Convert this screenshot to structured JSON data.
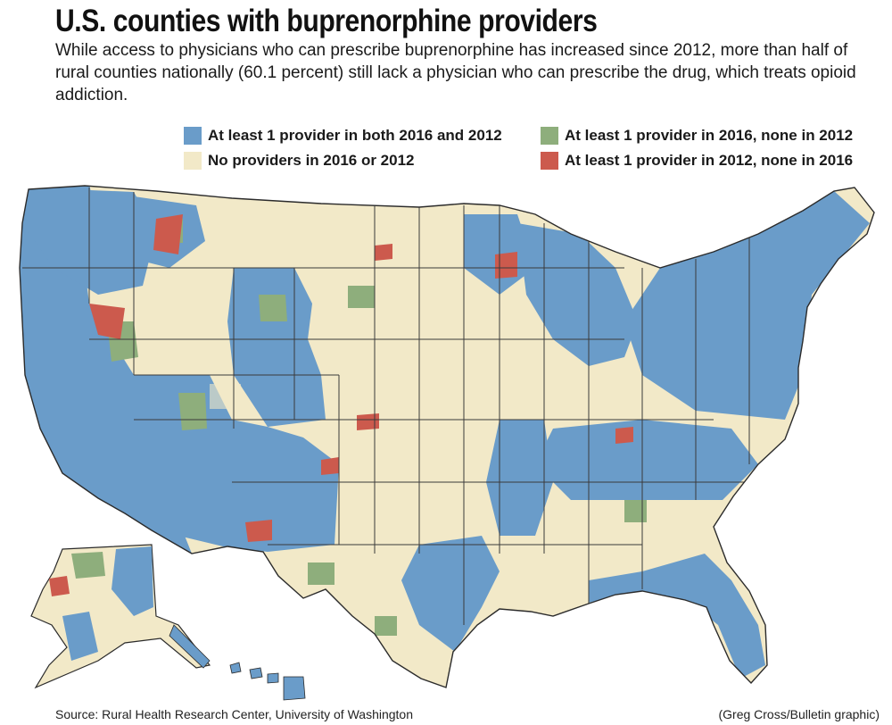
{
  "header": {
    "title": "U.S. counties with buprenorphine providers",
    "subtitle": "While access to physicians who can prescribe buprenorphine has increased since 2012, more than half of rural counties nationally (60.1 percent) still lack a physician who can prescribe the drug, which treats opioid addiction."
  },
  "legend": [
    {
      "label": "At least 1 provider in both 2016 and 2012",
      "color": "#6a9cc9"
    },
    {
      "label": "At least 1 provider in 2016, none in 2012",
      "color": "#8eae7c"
    },
    {
      "label": "No providers in 2016 or 2012",
      "color": "#f2e9c8"
    },
    {
      "label": "At least 1 provider in 2012, none in 2016",
      "color": "#cc5a4d"
    }
  ],
  "colors": {
    "both": "#6a9cc9",
    "new2016": "#8eae7c",
    "none": "#f2e9c8",
    "lost": "#cc5a4d",
    "border": "#3a3a3a"
  },
  "footer": {
    "source": "Source: Rural Health Research Center, University of Washington",
    "credit": "(Greg Cross/Bulletin graphic)"
  }
}
